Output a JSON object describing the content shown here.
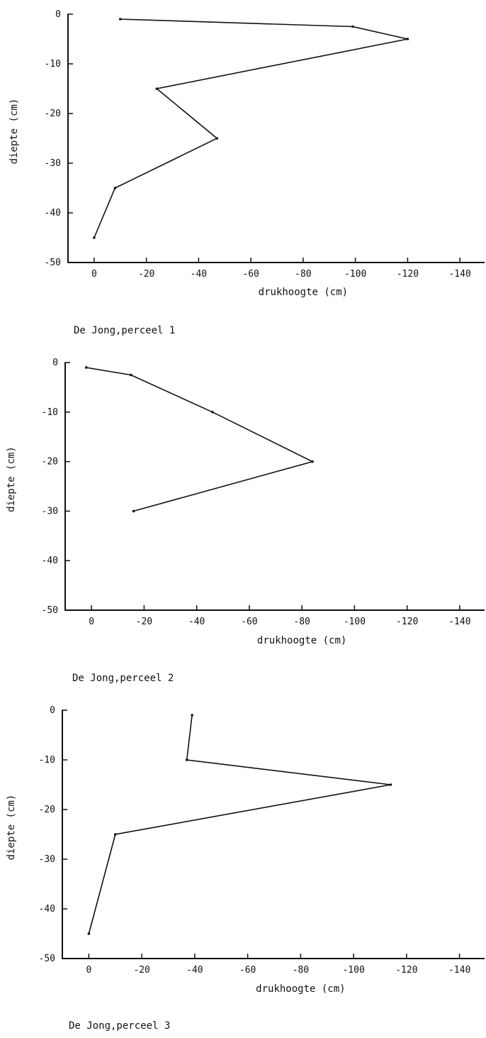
{
  "colors": {
    "line": "#111111",
    "axis": "#111111",
    "background": "#ffffff"
  },
  "chart_data": [
    {
      "type": "line",
      "caption": "De Jong,perceel 1",
      "xlabel": "drukhoogte (cm)",
      "ylabel": "diepte (cm)",
      "x_ticks": [
        "0",
        "-20",
        "-40",
        "-60",
        "-80",
        "-100",
        "-120",
        "-140"
      ],
      "y_ticks": [
        "0",
        "-10",
        "-20",
        "-30",
        "-40",
        "-50"
      ],
      "xlim": [
        10,
        -150
      ],
      "ylim": [
        0,
        -50
      ],
      "grid": false,
      "series": [
        {
          "x": [
            -10,
            -99,
            -120,
            -24,
            -47,
            -8,
            0
          ],
          "y": [
            -1,
            -2.5,
            -5,
            -15,
            -25,
            -35,
            -45
          ]
        }
      ]
    },
    {
      "type": "line",
      "caption": "De Jong,perceel 2",
      "xlabel": "drukhoogte (cm)",
      "ylabel": "diepte (cm)",
      "x_ticks": [
        "0",
        "-20",
        "-40",
        "-60",
        "-80",
        "-100",
        "-120",
        "-140"
      ],
      "y_ticks": [
        "0",
        "-10",
        "-20",
        "-30",
        "-40",
        "-50"
      ],
      "xlim": [
        10,
        -150
      ],
      "ylim": [
        0,
        -50
      ],
      "grid": false,
      "series": [
        {
          "x": [
            2,
            -15,
            -46,
            -84,
            -16
          ],
          "y": [
            -1,
            -2.5,
            -10,
            -20,
            -30
          ]
        }
      ]
    },
    {
      "type": "line",
      "caption": "De Jong,perceel 3",
      "xlabel": "drukhoogte (cm)",
      "ylabel": "diepte (cm)",
      "x_ticks": [
        "0",
        "-20",
        "-40",
        "-60",
        "-80",
        "-100",
        "-120",
        "-140"
      ],
      "y_ticks": [
        "0",
        "-10",
        "-20",
        "-30",
        "-40",
        "-50"
      ],
      "xlim": [
        10,
        -150
      ],
      "ylim": [
        0,
        -50
      ],
      "grid": false,
      "series": [
        {
          "x": [
            -39,
            -37,
            -114,
            -10,
            0
          ],
          "y": [
            -1,
            -10,
            -15,
            -25,
            -45
          ]
        }
      ]
    }
  ]
}
